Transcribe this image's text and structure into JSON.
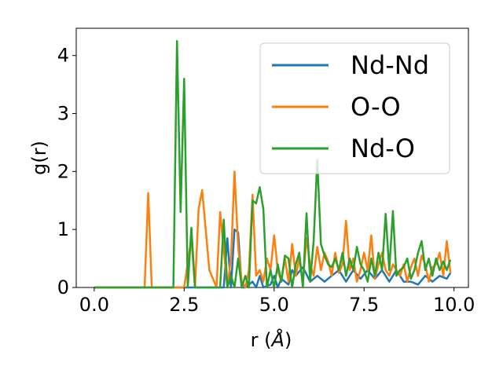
{
  "chart_data": {
    "type": "line",
    "xlabel": "r (",
    "xlabel_unit": "Å",
    "xlabel_close": ")",
    "ylabel": "g(r)",
    "xlim": [
      -0.5,
      10.4
    ],
    "ylim": [
      0,
      4.47
    ],
    "xticks": [
      0.0,
      2.5,
      5.0,
      7.5,
      10.0
    ],
    "xtick_labels": [
      "0.0",
      "2.5",
      "5.0",
      "7.5",
      "10.0"
    ],
    "yticks": [
      0,
      1,
      2,
      3,
      4
    ],
    "ytick_labels": [
      "0",
      "1",
      "2",
      "3",
      "4"
    ],
    "grid": false,
    "legend_position": "top-right",
    "series": [
      {
        "name": "Nd-Nd",
        "color": "#1f77b4",
        "x": [
          0,
          3.6,
          3.7,
          3.8,
          3.9,
          4.0,
          4.1,
          4.2,
          4.4,
          4.5,
          4.6,
          4.7,
          4.9,
          5.0,
          5.1,
          5.2,
          5.4,
          5.5,
          5.6,
          5.8,
          6.0,
          6.2,
          6.4,
          6.6,
          6.8,
          7.0,
          7.2,
          7.4,
          7.6,
          7.8,
          8.0,
          8.2,
          8.4,
          8.6,
          8.8,
          9.0,
          9.2,
          9.4,
          9.6,
          9.8,
          9.9
        ],
        "y": [
          0,
          0,
          0.85,
          0,
          1.0,
          0.95,
          0,
          0,
          0.1,
          0,
          0.2,
          0,
          0.05,
          0.2,
          0,
          0.15,
          0.05,
          0.3,
          0.2,
          0.35,
          0.1,
          0.2,
          0.1,
          0.2,
          0.3,
          0.1,
          0.3,
          0.15,
          0.3,
          0.15,
          0.3,
          0.1,
          0.3,
          0.1,
          0.1,
          0.05,
          0.2,
          0.1,
          0.2,
          0.15,
          0.25
        ]
      },
      {
        "name": "O-O",
        "color": "#ff7f0e",
        "x": [
          0,
          1.4,
          1.5,
          1.6,
          2.5,
          2.7,
          2.8,
          2.9,
          3.0,
          3.2,
          3.4,
          3.5,
          3.7,
          3.8,
          3.9,
          4.0,
          4.1,
          4.2,
          4.3,
          4.4,
          4.5,
          4.6,
          4.7,
          4.8,
          4.9,
          5.0,
          5.1,
          5.2,
          5.3,
          5.4,
          5.5,
          5.6,
          5.7,
          5.8,
          5.9,
          6.0,
          6.1,
          6.2,
          6.3,
          6.4,
          6.5,
          6.6,
          6.7,
          6.8,
          6.9,
          7.0,
          7.1,
          7.2,
          7.3,
          7.4,
          7.5,
          7.6,
          7.7,
          7.8,
          7.9,
          8.0,
          8.1,
          8.2,
          8.3,
          8.4,
          8.5,
          8.6,
          8.7,
          8.8,
          8.9,
          9.0,
          9.1,
          9.2,
          9.3,
          9.4,
          9.5,
          9.6,
          9.7,
          9.8,
          9.9
        ],
        "y": [
          0,
          0,
          1.63,
          0,
          0,
          0.85,
          0,
          1.35,
          1.68,
          0.3,
          0,
          1.3,
          0,
          0.5,
          2.0,
          0.7,
          0.1,
          0,
          0.3,
          1.6,
          0.2,
          0.3,
          0.1,
          0.5,
          0.3,
          0.9,
          0.3,
          0.1,
          0.5,
          0.1,
          0.75,
          0.2,
          0.5,
          0.1,
          0.85,
          0.4,
          0.2,
          0.7,
          0.3,
          0.6,
          0.45,
          0.2,
          0.6,
          0.25,
          0.4,
          1.15,
          0.3,
          0.5,
          0.1,
          0.3,
          0.6,
          0.3,
          0.9,
          0.15,
          0.4,
          0.6,
          0.3,
          0.2,
          0.4,
          0.3,
          0.2,
          0.4,
          0.1,
          0.35,
          0.5,
          0.2,
          0.55,
          0.4,
          0.1,
          0.35,
          0.4,
          0.6,
          0.2,
          0.8,
          0.25
        ]
      },
      {
        "name": "Nd-O",
        "color": "#2ca02c",
        "x": [
          0,
          2.2,
          2.3,
          2.4,
          2.5,
          2.6,
          2.7,
          2.8,
          3.5,
          3.6,
          3.7,
          3.8,
          3.9,
          4.0,
          4.1,
          4.2,
          4.3,
          4.4,
          4.5,
          4.6,
          4.7,
          4.8,
          4.9,
          5.0,
          5.1,
          5.2,
          5.3,
          5.4,
          5.5,
          5.6,
          5.7,
          5.8,
          5.9,
          6.0,
          6.1,
          6.2,
          6.3,
          6.4,
          6.5,
          6.6,
          6.7,
          6.8,
          6.9,
          7.0,
          7.1,
          7.2,
          7.3,
          7.4,
          7.5,
          7.6,
          7.7,
          7.8,
          7.9,
          8.0,
          8.1,
          8.2,
          8.3,
          8.4,
          8.5,
          8.6,
          8.7,
          8.8,
          8.9,
          9.0,
          9.1,
          9.2,
          9.3,
          9.4,
          9.5,
          9.6,
          9.7,
          9.8,
          9.9
        ],
        "y": [
          0,
          0,
          4.25,
          1.3,
          3.6,
          0,
          1.03,
          0,
          0,
          1.17,
          0,
          0.2,
          0,
          0.5,
          0,
          0.2,
          0,
          1.5,
          1.45,
          1.73,
          1.35,
          0,
          0.3,
          0,
          0.4,
          0.1,
          0.55,
          0.5,
          0,
          0.4,
          0.6,
          0,
          1.28,
          0.1,
          0.8,
          2.2,
          0.75,
          0.55,
          0.4,
          0.35,
          0.5,
          0.3,
          0.6,
          0.2,
          0.5,
          0.3,
          0.7,
          0.4,
          0.3,
          0.1,
          0.5,
          0.2,
          0.6,
          0.3,
          1.27,
          0.3,
          1.32,
          0.2,
          0.3,
          0.35,
          0.5,
          0.15,
          0.3,
          0.6,
          0.8,
          0.3,
          0.5,
          0.2,
          0.5,
          0.3,
          0.45,
          0.3,
          0.48
        ]
      }
    ]
  }
}
